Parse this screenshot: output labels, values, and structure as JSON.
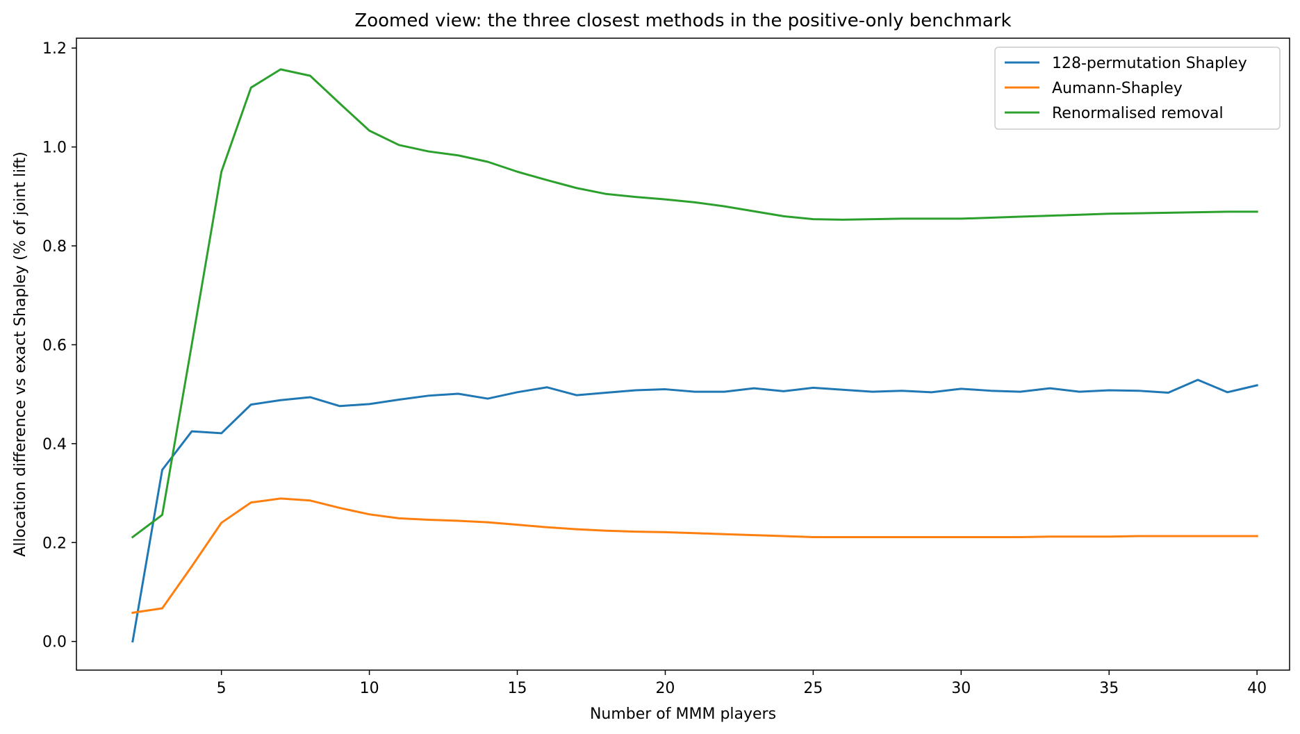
{
  "chart_data": {
    "type": "line",
    "title": "Zoomed view: the three closest methods in the positive-only benchmark",
    "xlabel": "Number of MMM players",
    "ylabel": "Allocation difference vs exact Shapley (% of joint lift)",
    "xlim": [
      0.1,
      41.1
    ],
    "ylim": [
      -0.058,
      1.22
    ],
    "xticks": [
      5,
      10,
      15,
      20,
      25,
      30,
      35,
      40
    ],
    "yticks": [
      0.0,
      0.2,
      0.4,
      0.6,
      0.8,
      1.0,
      1.2
    ],
    "xtick_labels": [
      "5",
      "10",
      "15",
      "20",
      "25",
      "30",
      "35",
      "40"
    ],
    "ytick_labels": [
      "0.0",
      "0.2",
      "0.4",
      "0.6",
      "0.8",
      "1.0",
      "1.2"
    ],
    "legend_position": "top-right",
    "grid": false,
    "x": [
      2,
      3,
      4,
      5,
      6,
      7,
      8,
      9,
      10,
      11,
      12,
      13,
      14,
      15,
      16,
      17,
      18,
      19,
      20,
      21,
      22,
      23,
      24,
      25,
      26,
      27,
      28,
      29,
      30,
      31,
      32,
      33,
      34,
      35,
      36,
      37,
      38,
      39,
      40
    ],
    "series": [
      {
        "name": "128-permutation Shapley",
        "color": "#1f77b4",
        "values": [
          0.0,
          0.347,
          0.425,
          0.421,
          0.479,
          0.488,
          0.494,
          0.476,
          0.48,
          0.489,
          0.497,
          0.501,
          0.491,
          0.504,
          0.514,
          0.498,
          0.503,
          0.508,
          0.51,
          0.505,
          0.505,
          0.512,
          0.506,
          0.513,
          0.509,
          0.505,
          0.507,
          0.504,
          0.511,
          0.507,
          0.505,
          0.512,
          0.505,
          0.508,
          0.507,
          0.503,
          0.529,
          0.504,
          0.518
        ]
      },
      {
        "name": "Aumann-Shapley",
        "color": "#ff7f0e",
        "values": [
          0.058,
          0.067,
          0.152,
          0.24,
          0.281,
          0.289,
          0.285,
          0.27,
          0.257,
          0.249,
          0.246,
          0.244,
          0.241,
          0.236,
          0.231,
          0.227,
          0.224,
          0.222,
          0.221,
          0.219,
          0.217,
          0.215,
          0.213,
          0.211,
          0.211,
          0.211,
          0.211,
          0.211,
          0.211,
          0.211,
          0.211,
          0.212,
          0.212,
          0.212,
          0.213,
          0.213,
          0.213,
          0.213,
          0.213
        ]
      },
      {
        "name": "Renormalised removal",
        "color": "#2ca02c",
        "values": [
          0.211,
          0.256,
          0.601,
          0.95,
          1.12,
          1.157,
          1.144,
          1.088,
          1.033,
          1.004,
          0.991,
          0.983,
          0.97,
          0.95,
          0.933,
          0.917,
          0.905,
          0.899,
          0.894,
          0.888,
          0.88,
          0.87,
          0.86,
          0.854,
          0.853,
          0.854,
          0.855,
          0.855,
          0.855,
          0.857,
          0.859,
          0.861,
          0.863,
          0.865,
          0.866,
          0.867,
          0.868,
          0.869,
          0.869
        ]
      }
    ]
  }
}
